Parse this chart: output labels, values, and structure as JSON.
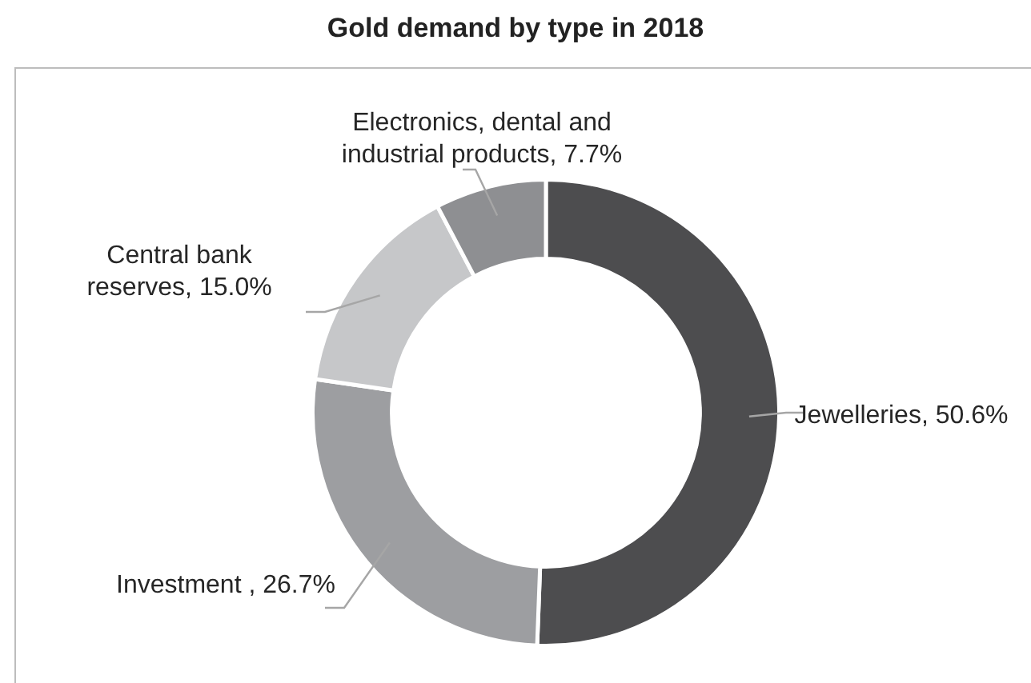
{
  "chart_data": {
    "type": "donut",
    "title": "Gold demand by type in 2018",
    "categories": [
      "Jewelleries",
      "Investment ",
      "Central bank reserves",
      "Electronics, dental and industrial products"
    ],
    "values": [
      50.6,
      26.7,
      15.0,
      7.7
    ],
    "value_labels": [
      "50.6%",
      "26.7%",
      "15.0%",
      "7.7%"
    ],
    "colors": [
      "#4d4d4f",
      "#9d9ea1",
      "#c6c7c9",
      "#8e8f92"
    ],
    "legend": false
  }
}
